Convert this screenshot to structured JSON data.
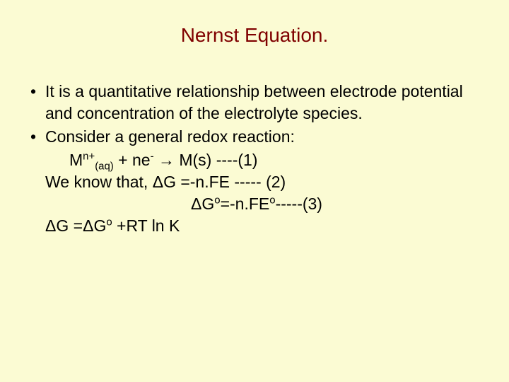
{
  "colors": {
    "background": "#fbfbd3",
    "title": "#7f0000",
    "body": "#000000"
  },
  "typography": {
    "title_fontsize": 28,
    "body_fontsize": 23,
    "font_family": "Arial"
  },
  "title": "Nernst Equation.",
  "bullets": [
    {
      "mark": "•",
      "text": "It is a quantitative relationship between electrode potential and concentration of the electrolyte species."
    },
    {
      "mark": "•",
      "text": "Consider a general redox reaction:"
    }
  ],
  "eq1_pre": "M",
  "eq1_sup1": "n+",
  "eq1_sub1": "(aq)",
  "eq1_mid": " + ne",
  "eq1_sup2": "-",
  "eq1_post": " → M(s) ----(1)",
  "line4": "We know that, ΔG =-n.FE ----- (2)",
  "eq3_pre": "ΔG",
  "eq3_sup1": "o",
  "eq3_mid": "=-n.FE",
  "eq3_sup2": "o",
  "eq3_post": "-----(3)",
  "eq4_pre": "ΔG =ΔG",
  "eq4_sup": "o",
  "eq4_post": " +RT ln K"
}
